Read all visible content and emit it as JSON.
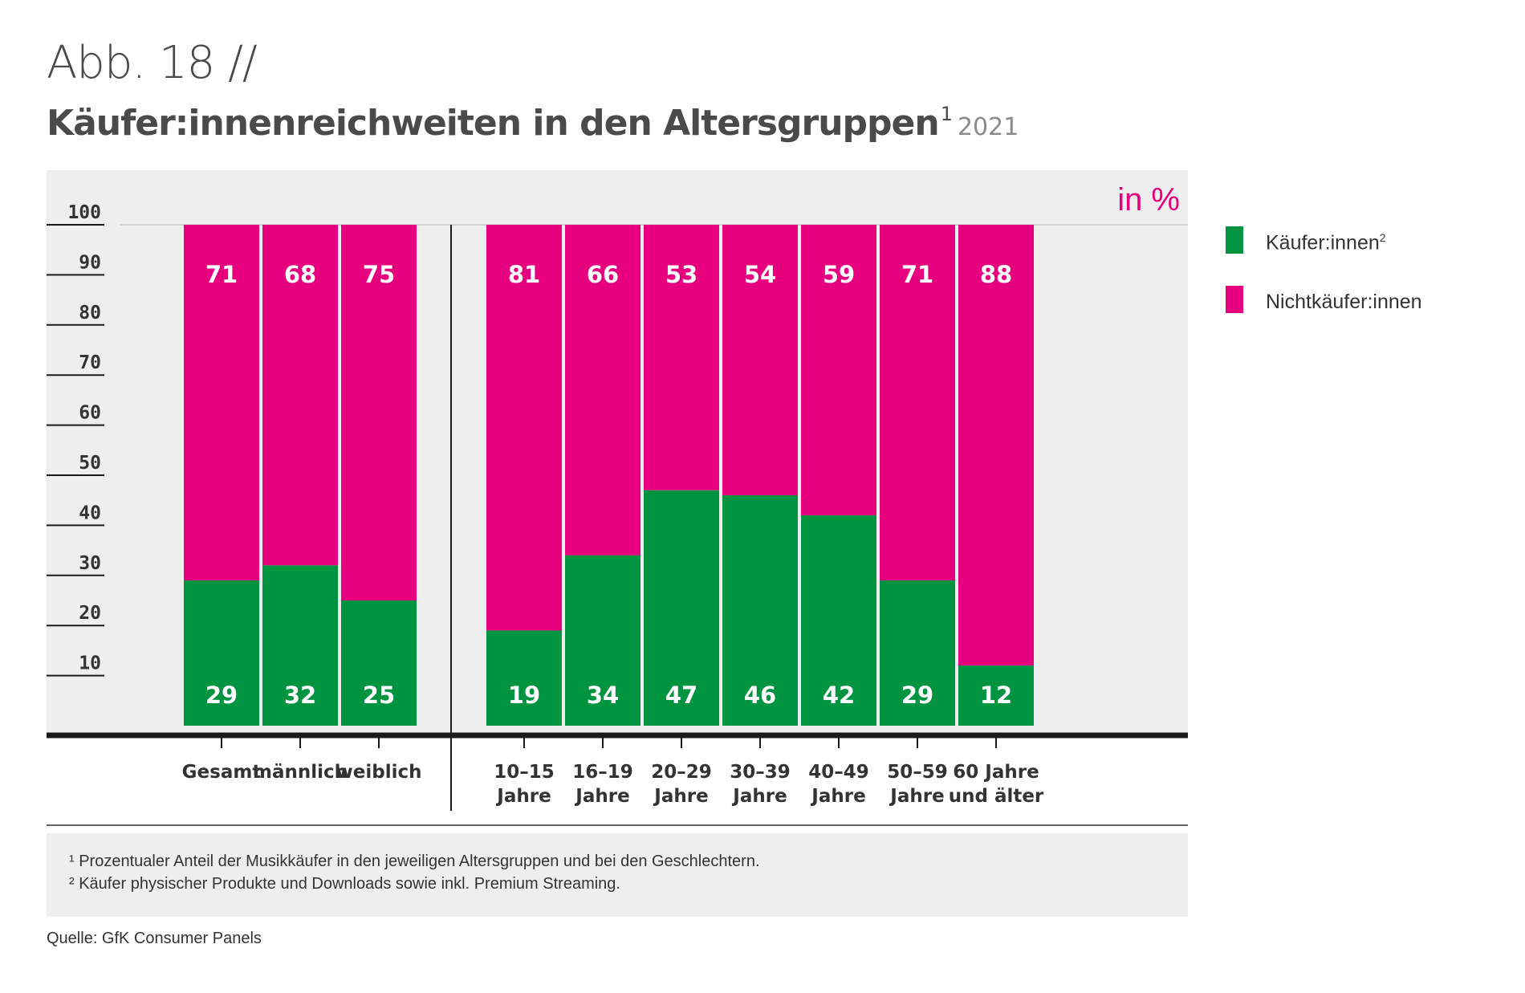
{
  "header": {
    "fig_label": "Abb. 18 //",
    "title": "Käufer:innenreichweiten in den Altersgruppen",
    "title_sup": "1",
    "year": "2021"
  },
  "unit_label": "in %",
  "legend": [
    {
      "label": "Käufer:innen",
      "sup": "2",
      "color": "#009440"
    },
    {
      "label": "Nichtkäufer:innen",
      "sup": "",
      "color": "#e6007e"
    }
  ],
  "chart_data": {
    "type": "bar",
    "stacked": true,
    "ylim": [
      0,
      100
    ],
    "yticks": [
      10,
      20,
      30,
      40,
      50,
      60,
      70,
      80,
      90,
      100
    ],
    "groups": [
      {
        "categories": [
          [
            "Gesamt"
          ],
          [
            "männlich"
          ],
          [
            "weiblich"
          ]
        ]
      },
      {
        "categories": [
          [
            "10–15",
            "Jahre"
          ],
          [
            "16–19",
            "Jahre"
          ],
          [
            "20–29",
            "Jahre"
          ],
          [
            "30–39",
            "Jahre"
          ],
          [
            "40–49",
            "Jahre"
          ],
          [
            "50–59",
            "Jahre"
          ],
          [
            "60 Jahre",
            "und älter"
          ]
        ]
      }
    ],
    "series": [
      {
        "name": "Käufer:innen",
        "color": "#009440",
        "values": [
          29,
          32,
          25,
          19,
          34,
          47,
          46,
          42,
          29,
          12
        ]
      },
      {
        "name": "Nichtkäufer:innen",
        "color": "#e6007e",
        "values": [
          71,
          68,
          75,
          81,
          66,
          53,
          54,
          59,
          71,
          88
        ]
      }
    ]
  },
  "footnotes": [
    "¹ Prozentualer Anteil der Musikkäufer in den jeweiligen Altersgruppen und bei den Geschlechtern.",
    "² Käufer physischer Produkte und Downloads sowie inkl. Premium Streaming."
  ],
  "source": "Quelle: GfK Consumer Panels"
}
